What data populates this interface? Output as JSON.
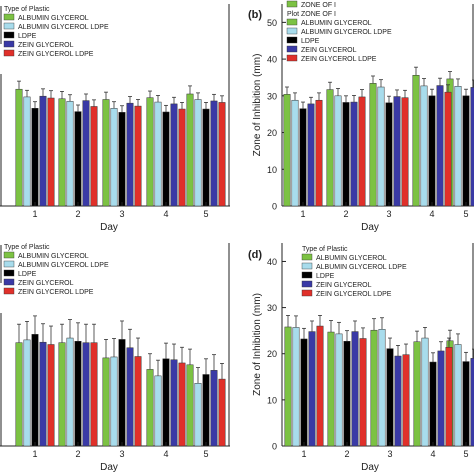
{
  "colors": {
    "albumin_glycerol": "#7cc243",
    "albumin_glycerol_ldpe": "#a8dcec",
    "ldpe": "#000000",
    "zein_glycerol": "#3a3aa6",
    "zein_glycerol_ldpe": "#e0302a"
  },
  "chart_data": [
    {
      "id": "a",
      "type": "bar",
      "panel_label": "",
      "xlabel": "Day",
      "ylabel": "",
      "categories": [
        "1",
        "2",
        "3",
        "4",
        "5"
      ],
      "ylim": [
        0,
        55
      ],
      "legend_title": "Type of Plastic",
      "legend_position": "top-left",
      "series": [
        {
          "name": "ALBUMIN GLYCEROL",
          "values": [
            31.8,
            29.2,
            29.0,
            29.5,
            30.5
          ],
          "errors": [
            2.2,
            2.0,
            2.0,
            1.8,
            2.2
          ]
        },
        {
          "name": "ALBUMIN GLYCEROL LDPE",
          "values": [
            29.7,
            28.5,
            26.6,
            28.3,
            29.0
          ],
          "errors": [
            1.8,
            1.8,
            1.8,
            1.8,
            1.8
          ]
        },
        {
          "name": "LDPE",
          "values": [
            26.6,
            25.7,
            25.5,
            25.6,
            26.4
          ],
          "errors": [
            1.8,
            1.8,
            1.8,
            1.8,
            1.8
          ]
        },
        {
          "name": "ZEIN GLYCEROL",
          "values": [
            29.9,
            28.7,
            28.0,
            27.8,
            28.6
          ],
          "errors": [
            2.0,
            1.8,
            1.8,
            1.8,
            1.8
          ]
        },
        {
          "name": "ZEIN GLYCEROL LDPE",
          "values": [
            29.4,
            27.1,
            27.2,
            26.4,
            28.2
          ],
          "errors": [
            2.0,
            1.8,
            1.8,
            1.8,
            1.8
          ]
        }
      ]
    },
    {
      "id": "b",
      "type": "bar",
      "panel_label": "(b)",
      "xlabel": "Day",
      "ylabel": "Zone of Inhibition (mm)",
      "categories": [
        "1",
        "2",
        "3",
        "4",
        "5"
      ],
      "yticks": [
        0,
        10,
        20,
        30,
        40,
        50
      ],
      "ylim": [
        0,
        55
      ],
      "legend_title": "",
      "legend_position": "top-left",
      "legend_extra": [
        "ZONE OF I",
        "Plot ZONE OF I"
      ],
      "series": [
        {
          "name": "ALBUMIN GLYCEROL",
          "values": [
            30.4,
            31.7,
            33.4,
            35.6,
            34.6
          ],
          "errors": [
            2.0,
            2.0,
            2.0,
            2.2,
            2.0
          ]
        },
        {
          "name": "ALBUMIN GLYCEROL LDPE",
          "values": [
            28.8,
            30.0,
            32.4,
            32.7,
            32.6
          ],
          "errors": [
            2.0,
            2.0,
            2.0,
            2.0,
            2.0
          ]
        },
        {
          "name": "LDPE",
          "values": [
            26.5,
            28.2,
            28.1,
            30.0,
            30.0
          ],
          "errors": [
            1.8,
            1.8,
            1.8,
            1.8,
            1.8
          ]
        },
        {
          "name": "ZEIN GLYCEROL",
          "values": [
            27.8,
            28.3,
            29.8,
            32.8,
            32.3
          ],
          "errors": [
            1.8,
            1.8,
            1.8,
            2.0,
            2.0
          ]
        },
        {
          "name": "ZEIN GLYCEROL LDPE",
          "values": [
            28.8,
            29.7,
            29.5,
            31.0,
            32.0
          ],
          "errors": [
            2.0,
            2.0,
            2.0,
            2.0,
            2.0
          ]
        }
      ]
    },
    {
      "id": "c",
      "type": "bar",
      "panel_label": "",
      "xlabel": "Day",
      "ylabel": "",
      "categories": [
        "1",
        "2",
        "3",
        "4",
        "5"
      ],
      "ylim": [
        0,
        44
      ],
      "legend_title": "Type of Plastic",
      "legend_position": "top-left",
      "series": [
        {
          "name": "ALBUMIN GLYCEROL",
          "values": [
            22.4,
            22.4,
            19.1,
            16.6,
            17.6
          ],
          "errors": [
            4.0,
            4.0,
            4.0,
            3.4,
            3.4
          ]
        },
        {
          "name": "ALBUMIN GLYCEROL LDPE",
          "values": [
            23.0,
            23.4,
            19.3,
            15.2,
            13.6
          ],
          "errors": [
            4.0,
            4.0,
            4.0,
            3.4,
            3.4
          ]
        },
        {
          "name": "LDPE",
          "values": [
            24.2,
            22.7,
            23.1,
            18.9,
            15.5
          ],
          "errors": [
            4.0,
            4.0,
            4.0,
            3.4,
            3.4
          ]
        },
        {
          "name": "ZEIN GLYCEROL",
          "values": [
            22.5,
            22.4,
            21.3,
            18.7,
            16.4
          ],
          "errors": [
            4.0,
            4.0,
            4.0,
            3.4,
            3.4
          ]
        },
        {
          "name": "ZEIN GLYCEROL LDPE",
          "values": [
            22.0,
            22.4,
            19.4,
            18.0,
            14.5
          ],
          "errors": [
            4.0,
            4.0,
            4.0,
            3.4,
            3.4
          ]
        }
      ]
    },
    {
      "id": "d",
      "type": "bar",
      "panel_label": "(d)",
      "xlabel": "Day",
      "ylabel": "Zone of Inhibition (mm)",
      "categories": [
        "1",
        "2",
        "3",
        "4",
        "5"
      ],
      "yticks": [
        0,
        10,
        20,
        30,
        40
      ],
      "ylim": [
        0,
        44
      ],
      "legend_title": "Type of Plastic",
      "legend_position": "top-left",
      "series": [
        {
          "name": "ALBUMIN GLYCEROL",
          "values": [
            25.8,
            24.7,
            25.1,
            22.6,
            22.8
          ],
          "errors": [
            2.5,
            2.5,
            2.5,
            2.3,
            2.3
          ]
        },
        {
          "name": "ALBUMIN GLYCEROL LDPE",
          "values": [
            25.7,
            24.3,
            25.3,
            23.4,
            22.0
          ],
          "errors": [
            2.5,
            2.5,
            2.5,
            2.3,
            2.3
          ]
        },
        {
          "name": "LDPE",
          "values": [
            23.2,
            22.7,
            21.1,
            18.2,
            18.3
          ],
          "errors": [
            2.3,
            2.3,
            2.3,
            2.0,
            2.0
          ]
        },
        {
          "name": "ZEIN GLYCEROL",
          "values": [
            24.8,
            24.8,
            19.5,
            20.6,
            19.0
          ],
          "errors": [
            2.3,
            2.3,
            2.3,
            2.0,
            2.0
          ]
        },
        {
          "name": "ZEIN GLYCEROL LDPE",
          "values": [
            26.0,
            23.3,
            19.8,
            21.4,
            19.4
          ],
          "errors": [
            2.3,
            2.3,
            2.3,
            2.0,
            2.0
          ]
        }
      ]
    }
  ]
}
